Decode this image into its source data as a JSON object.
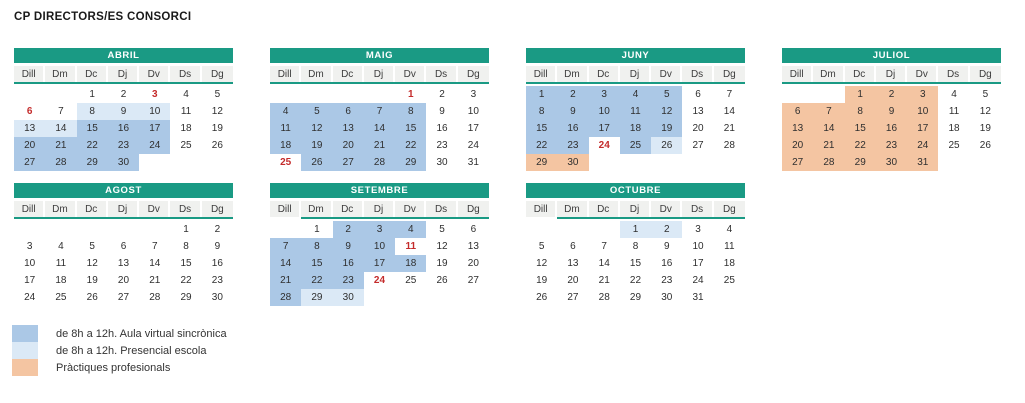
{
  "title": "CP DIRECTORS/ES CONSORCI",
  "day_headers": [
    "Dill",
    "Dm",
    "Dc",
    "Dj",
    "Dv",
    "Ds",
    "Dg"
  ],
  "colors": {
    "header_teal": "#1a9a84",
    "virtual": "#abc8e6",
    "presencial": "#dbe9f6",
    "practiques": "#f4c5a2",
    "holiday_red": "#c42b2b"
  },
  "months": [
    {
      "name": "ABRIL",
      "rule_skip_first": false,
      "weeks": [
        [
          {
            "d": ""
          },
          {
            "d": ""
          },
          {
            "d": "1"
          },
          {
            "d": "2"
          },
          {
            "d": "3",
            "red": true
          },
          {
            "d": "4"
          },
          {
            "d": "5"
          }
        ],
        [
          {
            "d": "6",
            "red": true
          },
          {
            "d": "7"
          },
          {
            "d": "8",
            "hl": "presencial"
          },
          {
            "d": "9",
            "hl": "presencial"
          },
          {
            "d": "10",
            "hl": "presencial"
          },
          {
            "d": "11"
          },
          {
            "d": "12"
          }
        ],
        [
          {
            "d": "13",
            "hl": "presencial"
          },
          {
            "d": "14",
            "hl": "presencial"
          },
          {
            "d": "15",
            "hl": "virtual"
          },
          {
            "d": "16",
            "hl": "virtual"
          },
          {
            "d": "17",
            "hl": "virtual"
          },
          {
            "d": "18"
          },
          {
            "d": "19"
          }
        ],
        [
          {
            "d": "20",
            "hl": "virtual"
          },
          {
            "d": "21",
            "hl": "virtual"
          },
          {
            "d": "22",
            "hl": "virtual"
          },
          {
            "d": "23",
            "hl": "virtual"
          },
          {
            "d": "24",
            "hl": "virtual"
          },
          {
            "d": "25"
          },
          {
            "d": "26"
          }
        ],
        [
          {
            "d": "27",
            "hl": "virtual"
          },
          {
            "d": "28",
            "hl": "virtual"
          },
          {
            "d": "29",
            "hl": "virtual"
          },
          {
            "d": "30",
            "hl": "virtual"
          },
          {
            "d": ""
          },
          {
            "d": ""
          },
          {
            "d": ""
          }
        ]
      ]
    },
    {
      "name": "MAIG",
      "rule_skip_first": false,
      "weeks": [
        [
          {
            "d": ""
          },
          {
            "d": ""
          },
          {
            "d": ""
          },
          {
            "d": ""
          },
          {
            "d": "1",
            "red": true
          },
          {
            "d": "2"
          },
          {
            "d": "3"
          }
        ],
        [
          {
            "d": "4",
            "hl": "virtual"
          },
          {
            "d": "5",
            "hl": "virtual"
          },
          {
            "d": "6",
            "hl": "virtual"
          },
          {
            "d": "7",
            "hl": "virtual"
          },
          {
            "d": "8",
            "hl": "virtual"
          },
          {
            "d": "9"
          },
          {
            "d": "10"
          }
        ],
        [
          {
            "d": "11",
            "hl": "virtual"
          },
          {
            "d": "12",
            "hl": "virtual"
          },
          {
            "d": "13",
            "hl": "virtual"
          },
          {
            "d": "14",
            "hl": "virtual"
          },
          {
            "d": "15",
            "hl": "virtual"
          },
          {
            "d": "16"
          },
          {
            "d": "17"
          }
        ],
        [
          {
            "d": "18",
            "hl": "virtual"
          },
          {
            "d": "19",
            "hl": "virtual"
          },
          {
            "d": "20",
            "hl": "virtual"
          },
          {
            "d": "21",
            "hl": "virtual"
          },
          {
            "d": "22",
            "hl": "virtual"
          },
          {
            "d": "23"
          },
          {
            "d": "24"
          }
        ],
        [
          {
            "d": "25",
            "red": true
          },
          {
            "d": "26",
            "hl": "virtual"
          },
          {
            "d": "27",
            "hl": "virtual"
          },
          {
            "d": "28",
            "hl": "virtual"
          },
          {
            "d": "29",
            "hl": "virtual"
          },
          {
            "d": "30"
          },
          {
            "d": "31"
          }
        ]
      ]
    },
    {
      "name": "JUNY",
      "rule_skip_first": false,
      "weeks": [
        [
          {
            "d": "1",
            "hl": "virtual"
          },
          {
            "d": "2",
            "hl": "virtual"
          },
          {
            "d": "3",
            "hl": "virtual"
          },
          {
            "d": "4",
            "hl": "virtual"
          },
          {
            "d": "5",
            "hl": "virtual"
          },
          {
            "d": "6"
          },
          {
            "d": "7"
          }
        ],
        [
          {
            "d": "8",
            "hl": "virtual"
          },
          {
            "d": "9",
            "hl": "virtual"
          },
          {
            "d": "10",
            "hl": "virtual"
          },
          {
            "d": "11",
            "hl": "virtual"
          },
          {
            "d": "12",
            "hl": "virtual"
          },
          {
            "d": "13"
          },
          {
            "d": "14"
          }
        ],
        [
          {
            "d": "15",
            "hl": "virtual"
          },
          {
            "d": "16",
            "hl": "virtual"
          },
          {
            "d": "17",
            "hl": "virtual"
          },
          {
            "d": "18",
            "hl": "virtual"
          },
          {
            "d": "19",
            "hl": "virtual"
          },
          {
            "d": "20"
          },
          {
            "d": "21"
          }
        ],
        [
          {
            "d": "22",
            "hl": "virtual"
          },
          {
            "d": "23",
            "hl": "virtual"
          },
          {
            "d": "24",
            "red": true
          },
          {
            "d": "25",
            "hl": "virtual"
          },
          {
            "d": "26",
            "hl": "presencial"
          },
          {
            "d": "27"
          },
          {
            "d": "28"
          }
        ],
        [
          {
            "d": "29",
            "hl": "practiques"
          },
          {
            "d": "30",
            "hl": "practiques"
          },
          {
            "d": ""
          },
          {
            "d": ""
          },
          {
            "d": ""
          },
          {
            "d": ""
          },
          {
            "d": ""
          }
        ]
      ]
    },
    {
      "name": "JULIOL",
      "rule_skip_first": false,
      "weeks": [
        [
          {
            "d": ""
          },
          {
            "d": ""
          },
          {
            "d": "1",
            "hl": "practiques"
          },
          {
            "d": "2",
            "hl": "practiques"
          },
          {
            "d": "3",
            "hl": "practiques"
          },
          {
            "d": "4"
          },
          {
            "d": "5"
          }
        ],
        [
          {
            "d": "6",
            "hl": "practiques"
          },
          {
            "d": "7",
            "hl": "practiques"
          },
          {
            "d": "8",
            "hl": "practiques"
          },
          {
            "d": "9",
            "hl": "practiques"
          },
          {
            "d": "10",
            "hl": "practiques"
          },
          {
            "d": "11"
          },
          {
            "d": "12"
          }
        ],
        [
          {
            "d": "13",
            "hl": "practiques"
          },
          {
            "d": "14",
            "hl": "practiques"
          },
          {
            "d": "15",
            "hl": "practiques"
          },
          {
            "d": "16",
            "hl": "practiques"
          },
          {
            "d": "17",
            "hl": "practiques"
          },
          {
            "d": "18"
          },
          {
            "d": "19"
          }
        ],
        [
          {
            "d": "20",
            "hl": "practiques"
          },
          {
            "d": "21",
            "hl": "practiques"
          },
          {
            "d": "22",
            "hl": "practiques"
          },
          {
            "d": "23",
            "hl": "practiques"
          },
          {
            "d": "24",
            "hl": "practiques"
          },
          {
            "d": "25"
          },
          {
            "d": "26"
          }
        ],
        [
          {
            "d": "27",
            "hl": "practiques"
          },
          {
            "d": "28",
            "hl": "practiques"
          },
          {
            "d": "29",
            "hl": "practiques"
          },
          {
            "d": "30",
            "hl": "practiques"
          },
          {
            "d": "31",
            "hl": "practiques"
          },
          {
            "d": ""
          },
          {
            "d": ""
          }
        ]
      ]
    },
    {
      "name": "AGOST",
      "rule_skip_first": false,
      "weeks": [
        [
          {
            "d": ""
          },
          {
            "d": ""
          },
          {
            "d": ""
          },
          {
            "d": ""
          },
          {
            "d": ""
          },
          {
            "d": "1"
          },
          {
            "d": "2"
          }
        ],
        [
          {
            "d": "3"
          },
          {
            "d": "4"
          },
          {
            "d": "5"
          },
          {
            "d": "6"
          },
          {
            "d": "7"
          },
          {
            "d": "8"
          },
          {
            "d": "9"
          }
        ],
        [
          {
            "d": "10"
          },
          {
            "d": "11"
          },
          {
            "d": "12"
          },
          {
            "d": "13"
          },
          {
            "d": "14"
          },
          {
            "d": "15"
          },
          {
            "d": "16"
          }
        ],
        [
          {
            "d": "17"
          },
          {
            "d": "18"
          },
          {
            "d": "19"
          },
          {
            "d": "20"
          },
          {
            "d": "21"
          },
          {
            "d": "22"
          },
          {
            "d": "23"
          }
        ],
        [
          {
            "d": "24"
          },
          {
            "d": "25"
          },
          {
            "d": "26"
          },
          {
            "d": "27"
          },
          {
            "d": "28"
          },
          {
            "d": "29"
          },
          {
            "d": "30"
          }
        ]
      ]
    },
    {
      "name": "SETEMBRE",
      "rule_skip_first": true,
      "weeks": [
        [
          {
            "d": ""
          },
          {
            "d": "1"
          },
          {
            "d": "2",
            "hl": "virtual"
          },
          {
            "d": "3",
            "hl": "virtual"
          },
          {
            "d": "4",
            "hl": "virtual"
          },
          {
            "d": "5"
          },
          {
            "d": "6"
          }
        ],
        [
          {
            "d": "7",
            "hl": "virtual"
          },
          {
            "d": "8",
            "hl": "virtual"
          },
          {
            "d": "9",
            "hl": "virtual"
          },
          {
            "d": "10",
            "hl": "virtual"
          },
          {
            "d": "11",
            "red": true
          },
          {
            "d": "12"
          },
          {
            "d": "13"
          }
        ],
        [
          {
            "d": "14",
            "hl": "virtual"
          },
          {
            "d": "15",
            "hl": "virtual"
          },
          {
            "d": "16",
            "hl": "virtual"
          },
          {
            "d": "17",
            "hl": "virtual"
          },
          {
            "d": "18",
            "hl": "virtual"
          },
          {
            "d": "19"
          },
          {
            "d": "20"
          }
        ],
        [
          {
            "d": "21",
            "hl": "virtual"
          },
          {
            "d": "22",
            "hl": "virtual"
          },
          {
            "d": "23",
            "hl": "virtual"
          },
          {
            "d": "24",
            "red": true
          },
          {
            "d": "25"
          },
          {
            "d": "26"
          },
          {
            "d": "27"
          }
        ],
        [
          {
            "d": "28",
            "hl": "virtual"
          },
          {
            "d": "29",
            "hl": "presencial"
          },
          {
            "d": "30",
            "hl": "presencial"
          },
          {
            "d": ""
          },
          {
            "d": ""
          },
          {
            "d": ""
          },
          {
            "d": ""
          }
        ]
      ]
    },
    {
      "name": "OCTUBRE",
      "rule_skip_first": true,
      "weeks": [
        [
          {
            "d": ""
          },
          {
            "d": ""
          },
          {
            "d": ""
          },
          {
            "d": "1",
            "hl": "presencial"
          },
          {
            "d": "2",
            "hl": "presencial"
          },
          {
            "d": "3"
          },
          {
            "d": "4"
          }
        ],
        [
          {
            "d": "5"
          },
          {
            "d": "6"
          },
          {
            "d": "7"
          },
          {
            "d": "8"
          },
          {
            "d": "9"
          },
          {
            "d": "10"
          },
          {
            "d": "11"
          }
        ],
        [
          {
            "d": "12"
          },
          {
            "d": "13"
          },
          {
            "d": "14"
          },
          {
            "d": "15"
          },
          {
            "d": "16"
          },
          {
            "d": "17"
          },
          {
            "d": "18"
          }
        ],
        [
          {
            "d": "19"
          },
          {
            "d": "20"
          },
          {
            "d": "21"
          },
          {
            "d": "22"
          },
          {
            "d": "23"
          },
          {
            "d": "24"
          },
          {
            "d": "25"
          }
        ],
        [
          {
            "d": "26"
          },
          {
            "d": "27"
          },
          {
            "d": "28"
          },
          {
            "d": "29"
          },
          {
            "d": "30"
          },
          {
            "d": "31"
          },
          {
            "d": ""
          }
        ]
      ]
    }
  ],
  "legend": {
    "items": [
      {
        "key": "virtual",
        "label": "de 8h a 12h. Aula virtual sincrònica"
      },
      {
        "key": "presencial",
        "label": "de 8h a 12h. Presencial escola"
      },
      {
        "key": "practiques",
        "label": "Pràctiques profesionals"
      }
    ]
  }
}
